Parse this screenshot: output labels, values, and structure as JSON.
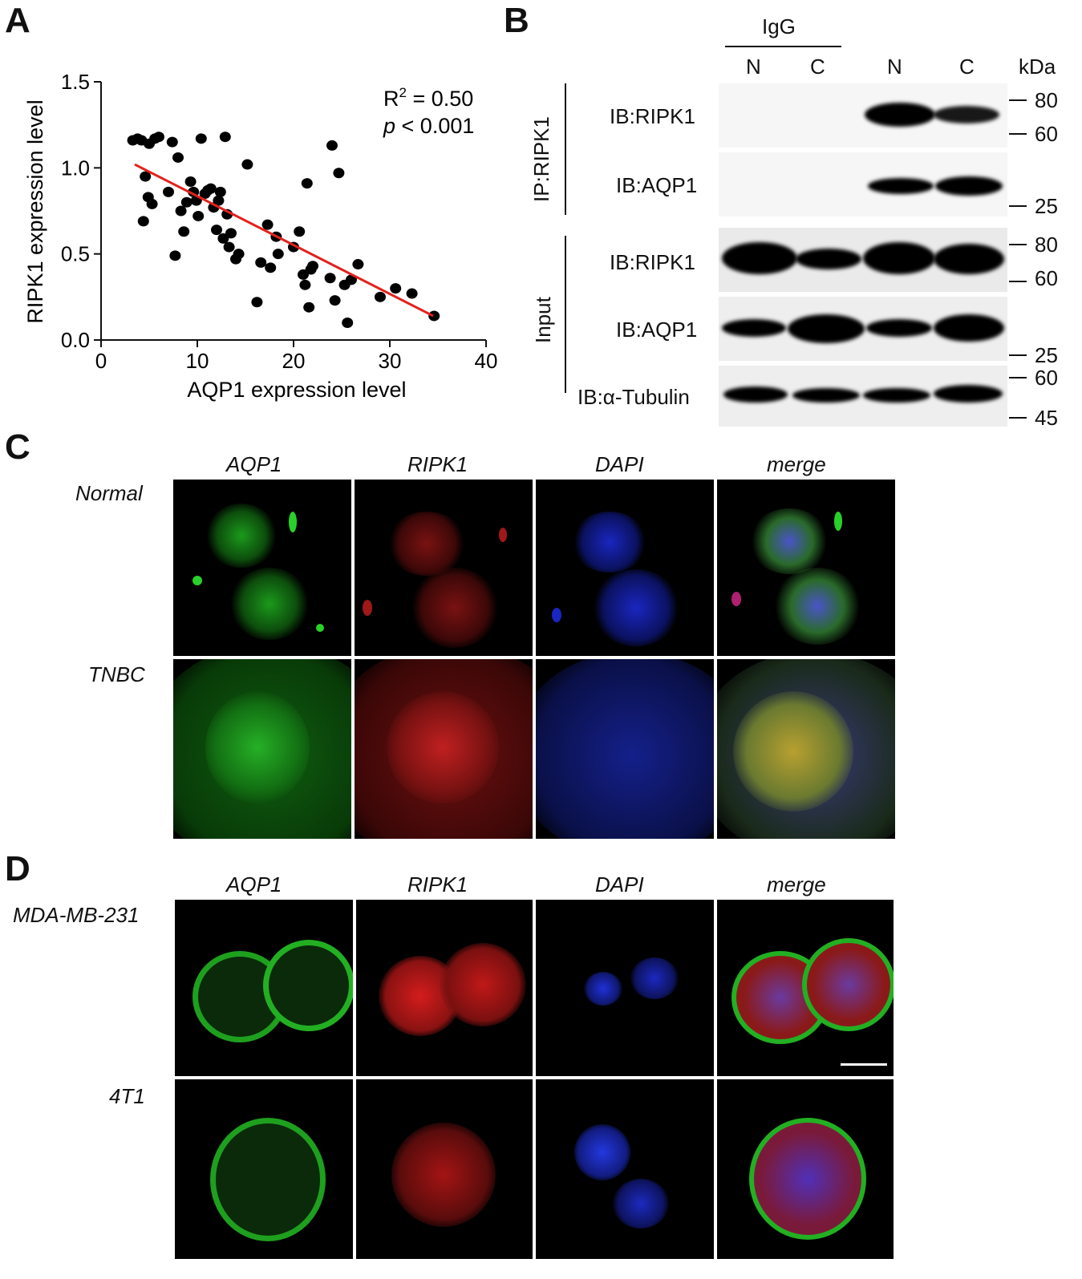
{
  "panels": {
    "a": "A",
    "b": "B",
    "c": "C",
    "d": "D"
  },
  "chart_data": {
    "type": "scatter",
    "xlabel": "AQP1 expression level",
    "ylabel": "RIPK1 expression level",
    "xlim": [
      0,
      40
    ],
    "ylim": [
      0,
      1.5
    ],
    "xticks": [
      0,
      10,
      20,
      30,
      40
    ],
    "yticks": [
      "0.0",
      "0.5",
      "1.0",
      "1.5"
    ],
    "annotation_r2": "R2 = 0.50",
    "annotation_r2_base": "R",
    "annotation_r2_sup": "2",
    "annotation_r2_rest": " = 0.50",
    "annotation_p_italic": "p",
    "annotation_p_rest": " < 0.001",
    "fit_line": {
      "x": [
        3.5,
        34.5
      ],
      "y": [
        1.02,
        0.14
      ],
      "color": "#e3211c"
    },
    "points": [
      [
        3.3,
        1.16
      ],
      [
        3.8,
        1.17
      ],
      [
        4.2,
        1.16
      ],
      [
        4.4,
        0.69
      ],
      [
        4.6,
        0.95
      ],
      [
        4.9,
        0.83
      ],
      [
        5.0,
        1.14
      ],
      [
        5.3,
        0.79
      ],
      [
        5.6,
        1.17
      ],
      [
        6.0,
        1.18
      ],
      [
        7.0,
        0.86
      ],
      [
        7.4,
        1.15
      ],
      [
        7.7,
        0.49
      ],
      [
        8.0,
        1.06
      ],
      [
        8.3,
        0.75
      ],
      [
        8.6,
        0.63
      ],
      [
        8.9,
        0.8
      ],
      [
        9.3,
        0.92
      ],
      [
        9.6,
        0.86
      ],
      [
        9.9,
        0.81
      ],
      [
        10.1,
        0.72
      ],
      [
        10.4,
        1.17
      ],
      [
        10.8,
        0.85
      ],
      [
        11.1,
        0.87
      ],
      [
        11.4,
        0.88
      ],
      [
        11.7,
        0.77
      ],
      [
        12.0,
        0.64
      ],
      [
        12.2,
        0.81
      ],
      [
        12.4,
        0.86
      ],
      [
        12.7,
        0.59
      ],
      [
        12.9,
        1.18
      ],
      [
        13.1,
        0.73
      ],
      [
        13.3,
        0.54
      ],
      [
        13.5,
        0.62
      ],
      [
        14.0,
        0.47
      ],
      [
        14.3,
        0.5
      ],
      [
        15.2,
        1.02
      ],
      [
        16.2,
        0.22
      ],
      [
        16.6,
        0.45
      ],
      [
        17.3,
        0.67
      ],
      [
        17.6,
        0.42
      ],
      [
        18.2,
        0.6
      ],
      [
        18.4,
        0.5
      ],
      [
        20.0,
        0.54
      ],
      [
        20.6,
        0.63
      ],
      [
        21.0,
        0.38
      ],
      [
        21.2,
        0.32
      ],
      [
        21.4,
        0.91
      ],
      [
        21.8,
        0.41
      ],
      [
        22.0,
        0.43
      ],
      [
        21.6,
        0.19
      ],
      [
        23.8,
        0.36
      ],
      [
        24.0,
        1.13
      ],
      [
        24.3,
        0.23
      ],
      [
        24.7,
        0.97
      ],
      [
        25.3,
        0.32
      ],
      [
        25.6,
        0.1
      ],
      [
        26.0,
        0.35
      ],
      [
        26.7,
        0.44
      ],
      [
        29.0,
        0.25
      ],
      [
        30.6,
        0.3
      ],
      [
        32.3,
        0.27
      ],
      [
        34.6,
        0.14
      ]
    ]
  },
  "blot": {
    "igg_label": "IgG",
    "lanes": [
      "N",
      "C",
      "N",
      "C"
    ],
    "kda_label": "kDa",
    "ip_label": "IP:RIPK1",
    "input_label": "Input",
    "rows": [
      "IB:RIPK1",
      "IB:AQP1",
      "IB:RIPK1",
      "IB:AQP1",
      "IB:α-Tubulin"
    ],
    "mw": {
      "r1a": "80",
      "r1b": "60",
      "r2": "25",
      "r3a": "80",
      "r3b": "60",
      "r4": "25",
      "r5a": "60",
      "r5b": "45"
    }
  },
  "panel_c": {
    "cols": [
      "AQP1",
      "RIPK1",
      "DAPI",
      "merge"
    ],
    "rows": [
      "Normal",
      "TNBC"
    ],
    "colors": {
      "green": "#22c022",
      "red": "#d82020",
      "blue": "#1c2ae0"
    }
  },
  "panel_d": {
    "cols": [
      "AQP1",
      "RIPK1",
      "DAPI",
      "merge"
    ],
    "rows": [
      "MDA-MB-231",
      "4T1"
    ]
  }
}
